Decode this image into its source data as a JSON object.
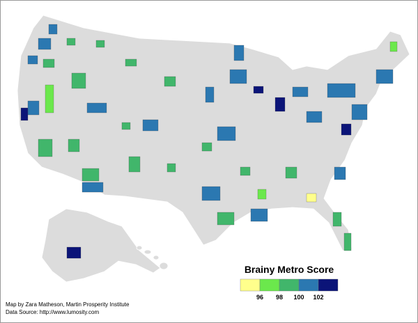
{
  "legend": {
    "title": "Brainy Metro Score",
    "colors": [
      "#ffff8c",
      "#6be84c",
      "#41b66b",
      "#2b78b1",
      "#0b1478"
    ],
    "ticks": [
      96,
      98,
      100,
      102
    ]
  },
  "credits": {
    "author": "Map by Zara Matheson, Martin Prosperity Institute",
    "source": "Data Source: http://www.lumosity.com"
  }
}
